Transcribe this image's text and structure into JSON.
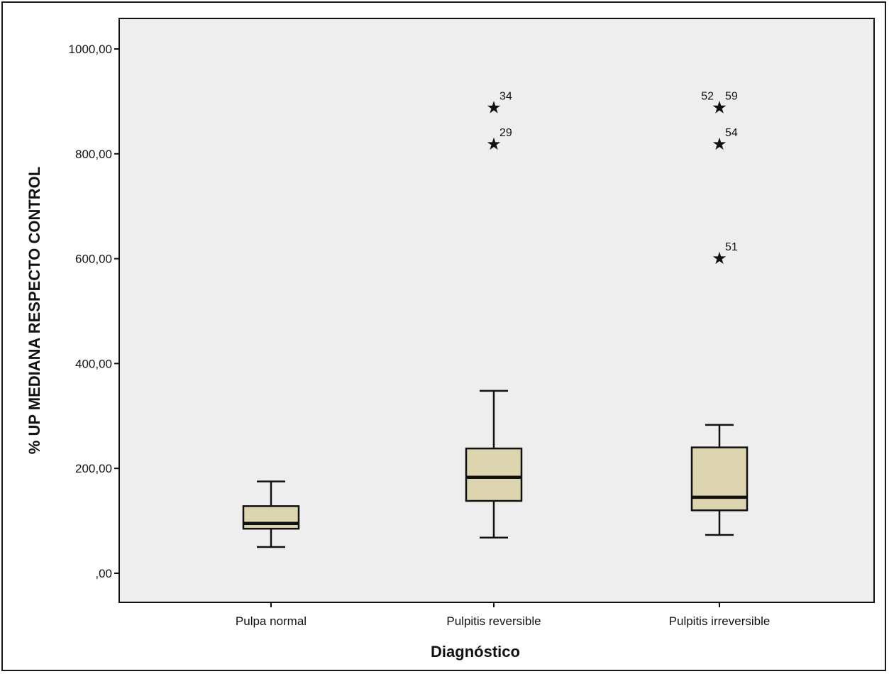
{
  "chart_data": {
    "type": "box",
    "title": "",
    "xlabel": "Diagnóstico",
    "ylabel": "% UP MEDIANA RESPECTO CONTROL",
    "ylim": [
      0,
      1050
    ],
    "yticks": [
      {
        "value": 0,
        "label": ",00"
      },
      {
        "value": 200,
        "label": "200,00"
      },
      {
        "value": 400,
        "label": "400,00"
      },
      {
        "value": 600,
        "label": "600,00"
      },
      {
        "value": 800,
        "label": "800,00"
      },
      {
        "value": 1000,
        "label": "1000,00"
      }
    ],
    "grid": false,
    "colors": {
      "box_fill": "#ddd5b0",
      "plot_bg": "#eeeeee",
      "stroke": "#111111"
    },
    "categories": [
      "Pulpa normal",
      "Pulpitis reversible",
      "Pulpitis irreversible"
    ],
    "boxes": [
      {
        "category": "Pulpa normal",
        "whisker_low": 50,
        "q1": 85,
        "median": 95,
        "q3": 128,
        "whisker_high": 175,
        "outliers": []
      },
      {
        "category": "Pulpitis reversible",
        "whisker_low": 68,
        "q1": 138,
        "median": 183,
        "q3": 238,
        "whisker_high": 348,
        "outliers": [
          {
            "value": 890,
            "label": "34"
          },
          {
            "value": 820,
            "label": "29"
          }
        ]
      },
      {
        "category": "Pulpitis irreversible",
        "whisker_low": 73,
        "q1": 120,
        "median": 145,
        "q3": 240,
        "whisker_high": 283,
        "outliers": [
          {
            "value": 890,
            "label": "52"
          },
          {
            "value": 890,
            "label": "59"
          },
          {
            "value": 820,
            "label": "54"
          },
          {
            "value": 602,
            "label": "51"
          }
        ]
      }
    ]
  }
}
